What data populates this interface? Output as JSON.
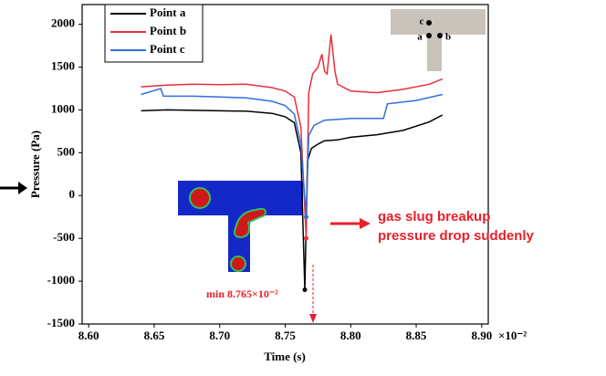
{
  "chart_data": {
    "type": "line",
    "xlabel": "Time (s)",
    "ylabel": "Pressure (Pa)",
    "x_multiplier": "×10⁻²",
    "xlim": [
      8.595,
      8.905
    ],
    "ylim": [
      -1500,
      2230
    ],
    "xticks": [
      {
        "value": 8.6,
        "label": "8.60"
      },
      8.65,
      {
        "value": 8.7,
        "label": "8.70"
      },
      8.75,
      {
        "value": 8.8,
        "label": "8.80"
      },
      8.85,
      {
        "value": 8.9,
        "label": "8.90"
      }
    ],
    "yticks": [
      2000,
      1500,
      1000,
      500,
      0,
      -500,
      -1000,
      -1500
    ],
    "legend": "upper left",
    "series": [
      {
        "name": "Point a",
        "color": "#000000",
        "x": [
          8.64,
          8.66,
          8.68,
          8.7,
          8.72,
          8.74,
          8.75,
          8.757,
          8.762,
          8.765,
          8.767,
          8.77,
          8.775,
          8.78,
          8.79,
          8.8,
          8.82,
          8.84,
          8.86,
          8.87
        ],
        "values": [
          990,
          1000,
          995,
          990,
          985,
          960,
          920,
          850,
          500,
          -1100,
          400,
          550,
          600,
          640,
          650,
          680,
          710,
          760,
          860,
          940
        ]
      },
      {
        "name": "Point b",
        "color": "#e8303a",
        "x": [
          8.64,
          8.66,
          8.68,
          8.7,
          8.72,
          8.74,
          8.75,
          8.757,
          8.762,
          8.766,
          8.768,
          8.771,
          8.775,
          8.778,
          8.78,
          8.782,
          8.785,
          8.788,
          8.79,
          8.8,
          8.82,
          8.84,
          8.86,
          8.87
        ],
        "values": [
          1270,
          1290,
          1300,
          1295,
          1300,
          1260,
          1220,
          1150,
          800,
          -500,
          1200,
          1420,
          1500,
          1650,
          1450,
          1420,
          1880,
          1450,
          1300,
          1220,
          1200,
          1240,
          1300,
          1360
        ]
      },
      {
        "name": "Point c",
        "color": "#2f6fe0",
        "x": [
          8.64,
          8.655,
          8.657,
          8.68,
          8.7,
          8.72,
          8.74,
          8.75,
          8.757,
          8.762,
          8.766,
          8.768,
          8.772,
          8.78,
          8.8,
          8.825,
          8.828,
          8.85,
          8.87
        ],
        "values": [
          1180,
          1250,
          1160,
          1160,
          1150,
          1140,
          1100,
          1050,
          950,
          600,
          -250,
          700,
          820,
          880,
          900,
          900,
          1070,
          1110,
          1180
        ]
      }
    ],
    "annotations": [
      "gas slug breakup",
      "pressure drop suddenly",
      "min 8.765×10⁻²"
    ],
    "inset_labels": [
      "c",
      "a",
      "b"
    ]
  }
}
